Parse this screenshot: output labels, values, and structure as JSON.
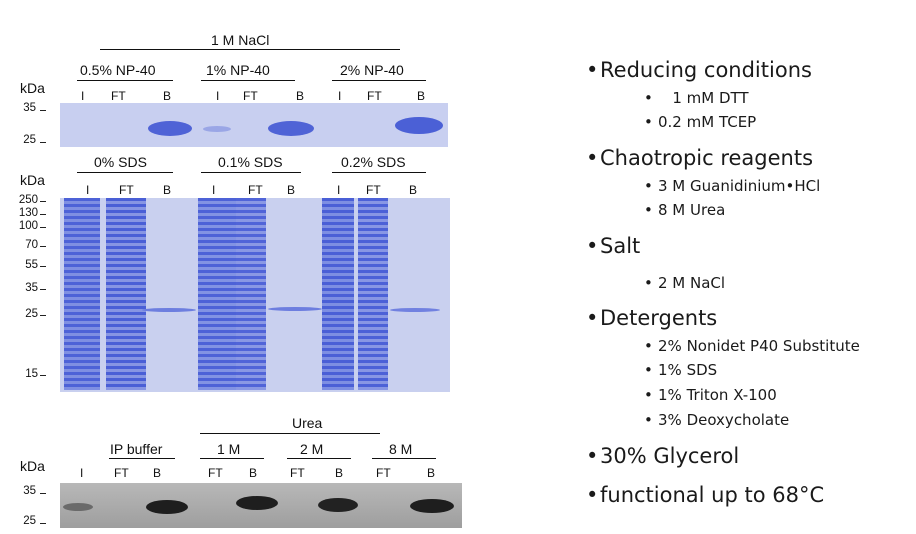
{
  "panel1": {
    "kda": "kDa",
    "header": "1 M NaCl",
    "groups": [
      "0.5% NP-40",
      "1% NP-40",
      "2% NP-40"
    ],
    "lanes": [
      "I",
      "FT",
      "B",
      "I",
      "FT",
      "B",
      "I",
      "FT",
      "B"
    ],
    "markers": [
      "35",
      "25"
    ]
  },
  "panel2": {
    "kda": "kDa",
    "groups": [
      "0% SDS",
      "0.1% SDS",
      "0.2% SDS"
    ],
    "lanes": [
      "I",
      "FT",
      "B",
      "I",
      "FT",
      "B",
      "I",
      "FT",
      "B"
    ],
    "markers": [
      "250",
      "130",
      "100",
      "70",
      "55",
      "35",
      "25",
      "15"
    ]
  },
  "panel3": {
    "kda": "kDa",
    "header": "Urea",
    "groups": [
      "IP buffer",
      "1 M",
      "2 M",
      "8 M"
    ],
    "lanes": [
      "I",
      "FT",
      "B",
      "FT",
      "B",
      "FT",
      "B",
      "FT",
      "B"
    ],
    "markers": [
      "35",
      "25"
    ]
  },
  "bullets": [
    {
      "title": "Reducing conditions",
      "items": [
        "1 mM DTT",
        "0.2 mM TCEP"
      ]
    },
    {
      "title": "Chaotropic reagents",
      "items": [
        "3 M Guanidinium•HCl",
        "8 M Urea"
      ]
    },
    {
      "title": "Salt",
      "items": [
        "2 M NaCl"
      ]
    },
    {
      "title": "Detergents",
      "items": [
        "2% Nonidet P40 Substitute",
        "1% SDS",
        "1% Triton X-100",
        "3% Deoxycholate"
      ]
    },
    {
      "title": "30% Glycerol",
      "items": []
    },
    {
      "title": "functional up to 68°C",
      "items": []
    }
  ],
  "colors": {
    "coomassie_bg": "#c9cfee",
    "coomassie_band": "#5b6fd8",
    "western_bg": "#a9a9a9",
    "western_band": "#1a1a1a"
  }
}
